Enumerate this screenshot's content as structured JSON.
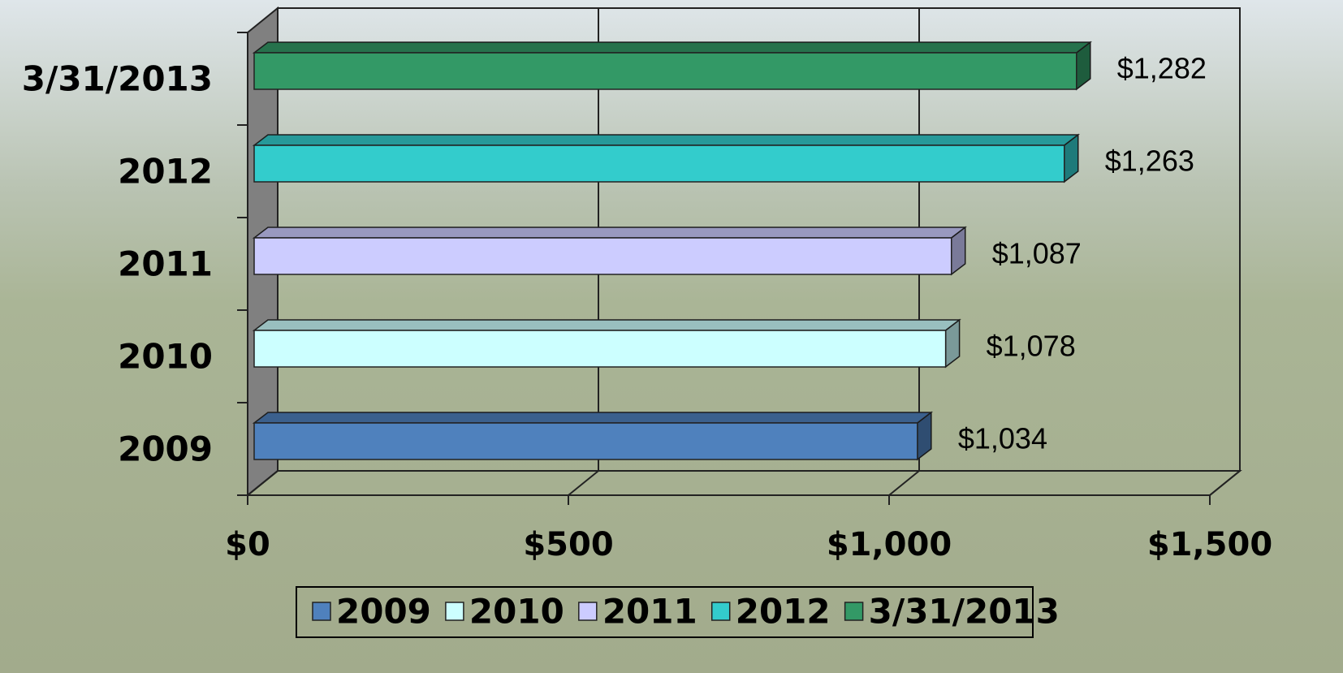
{
  "chart_data": {
    "type": "bar3d-horizontal",
    "categories": [
      "2009",
      "2010",
      "2011",
      "2012",
      "3/31/2013"
    ],
    "values": [
      1034,
      1078,
      1087,
      1263,
      1282
    ],
    "value_labels": [
      "$1,034",
      "$1,078",
      "$1,087",
      "$1,263",
      "$1,282"
    ],
    "colors": [
      "#4f81bd",
      "#ccffff",
      "#ccccff",
      "#33cccc",
      "#339966"
    ],
    "xlim": [
      0,
      1500
    ],
    "xticks": [
      {
        "value": 0,
        "label": "$0"
      },
      {
        "value": 500,
        "label": "$500"
      },
      {
        "value": 1000,
        "label": "$1,000"
      },
      {
        "value": 1500,
        "label": "$1,500"
      }
    ],
    "grid": true,
    "legend": "bottom"
  }
}
